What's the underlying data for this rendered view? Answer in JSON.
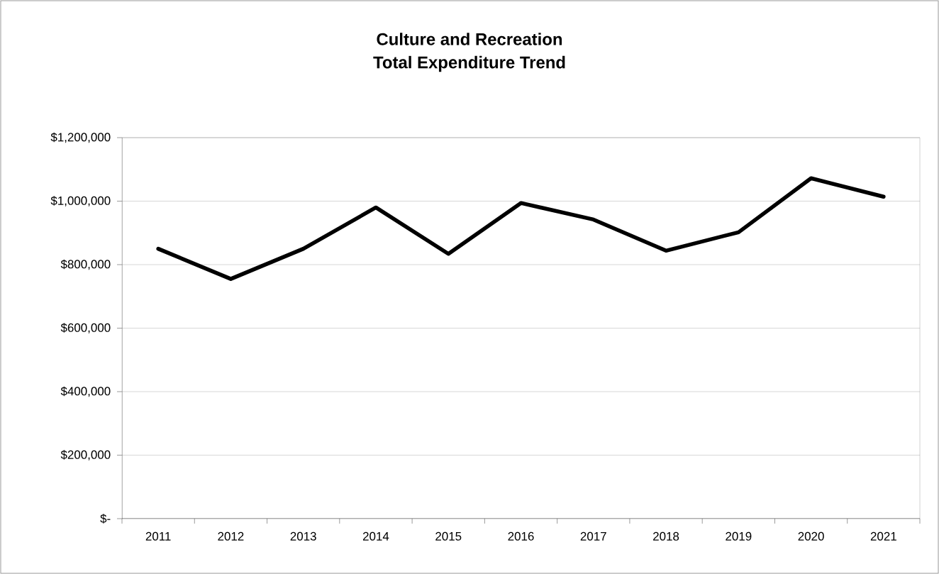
{
  "chart_data": {
    "type": "line",
    "title": "Culture and Recreation",
    "subtitle": "Total Expenditure Trend",
    "categories": [
      "2011",
      "2012",
      "2013",
      "2014",
      "2015",
      "2016",
      "2017",
      "2018",
      "2019",
      "2020",
      "2021"
    ],
    "series": [
      {
        "color": "#000000",
        "values": [
          850000,
          755000,
          850000,
          980000,
          834000,
          994000,
          942000,
          844000,
          902000,
          1072000,
          1014000
        ]
      }
    ],
    "ylim": [
      0,
      1200000
    ],
    "yticks": [
      {
        "value": 0,
        "label": "$-"
      },
      {
        "value": 200000,
        "label": "$200,000"
      },
      {
        "value": 400000,
        "label": "$400,000"
      },
      {
        "value": 600000,
        "label": "$600,000"
      },
      {
        "value": 800000,
        "label": "$800,000"
      },
      {
        "value": 1000000,
        "label": "$1,000,000"
      },
      {
        "value": 1200000,
        "label": "$1,200,000"
      }
    ],
    "grid": "y",
    "marker": "none",
    "line_style": "solid"
  }
}
